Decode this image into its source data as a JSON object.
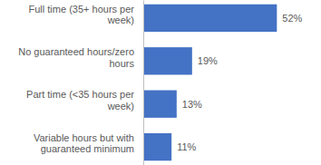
{
  "chart_data": {
    "type": "bar",
    "orientation": "horizontal",
    "categories": [
      "Full time (35+ hours per week)",
      "No guaranteed hours/zero hours",
      "Part time (<35 hours per week)",
      "Variable hours but with guaranteed minimum"
    ],
    "values": [
      52,
      19,
      13,
      11
    ],
    "value_labels": [
      "52%",
      "19%",
      "13%",
      "11%"
    ],
    "color": "#4472c4",
    "xlim": [
      0,
      60
    ],
    "data_labels": true,
    "tick_labels": "y",
    "grid": false
  }
}
